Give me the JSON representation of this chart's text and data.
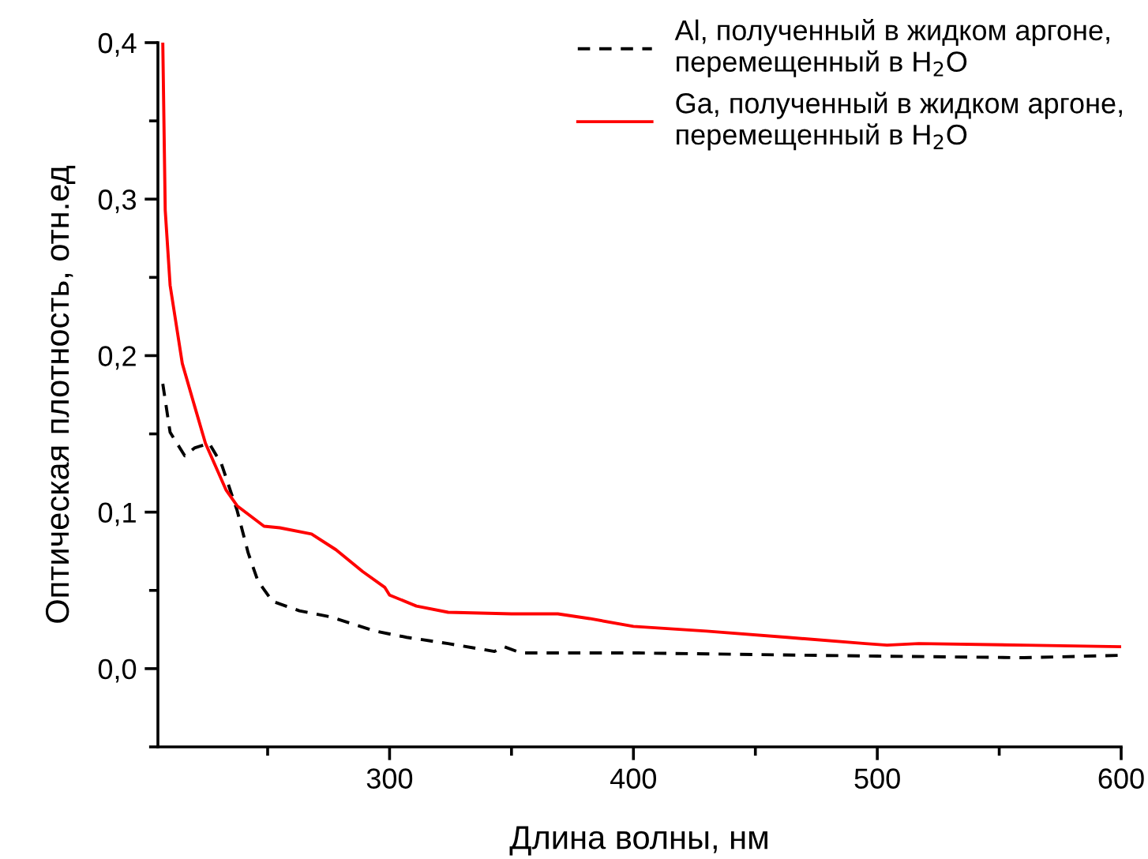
{
  "chart_data": {
    "type": "line",
    "xlabel": "Длина волны, нм",
    "ylabel": "Оптическая плотность, отн.ед",
    "xlim": [
      205,
      600
    ],
    "ylim": [
      -0.05,
      0.4
    ],
    "xticks": [
      300,
      400,
      500,
      600
    ],
    "yticks": [
      {
        "value": 0.0,
        "label": "0,0"
      },
      {
        "value": 0.1,
        "label": "0,1"
      },
      {
        "value": 0.2,
        "label": "0,2"
      },
      {
        "value": 0.3,
        "label": "0,3"
      },
      {
        "value": 0.4,
        "label": "0,4"
      }
    ],
    "grid": false,
    "legend": "top right",
    "series": [
      {
        "name": "Al, полученный в жидком аргоне,\nперемещенный в H$_{2}$O",
        "color": "#000000",
        "line_style": "dashed",
        "x": [
          207,
          210,
          216,
          220,
          226,
          231,
          237.5,
          242,
          246,
          252,
          263,
          276,
          294,
          307,
          324,
          343,
          347,
          354,
          402,
          450,
          500,
          560,
          600
        ],
        "values": [
          0.182,
          0.151,
          0.136,
          0.141,
          0.144,
          0.131,
          0.101,
          0.074,
          0.056,
          0.043,
          0.037,
          0.033,
          0.024,
          0.02,
          0.016,
          0.011,
          0.014,
          0.01,
          0.01,
          0.009,
          0.008,
          0.007,
          0.0085
        ]
      },
      {
        "name": "Ga, полученный в жидком аргоне,\nперемещенный в H$_{2}$O",
        "color": "#ff0000",
        "line_style": "solid",
        "x": [
          207,
          208,
          210,
          213,
          215,
          220,
          224.5,
          233,
          237.5,
          248.5,
          255,
          268,
          278,
          289,
          298,
          300,
          311,
          324,
          350,
          369,
          382,
          400,
          430,
          463,
          495,
          504,
          517,
          560,
          600
        ],
        "values": [
          0.4,
          0.293,
          0.245,
          0.215,
          0.195,
          0.168,
          0.144,
          0.114,
          0.104,
          0.091,
          0.09,
          0.086,
          0.076,
          0.062,
          0.052,
          0.047,
          0.04,
          0.036,
          0.035,
          0.035,
          0.032,
          0.027,
          0.024,
          0.02,
          0.016,
          0.015,
          0.016,
          0.015,
          0.014
        ]
      }
    ]
  }
}
